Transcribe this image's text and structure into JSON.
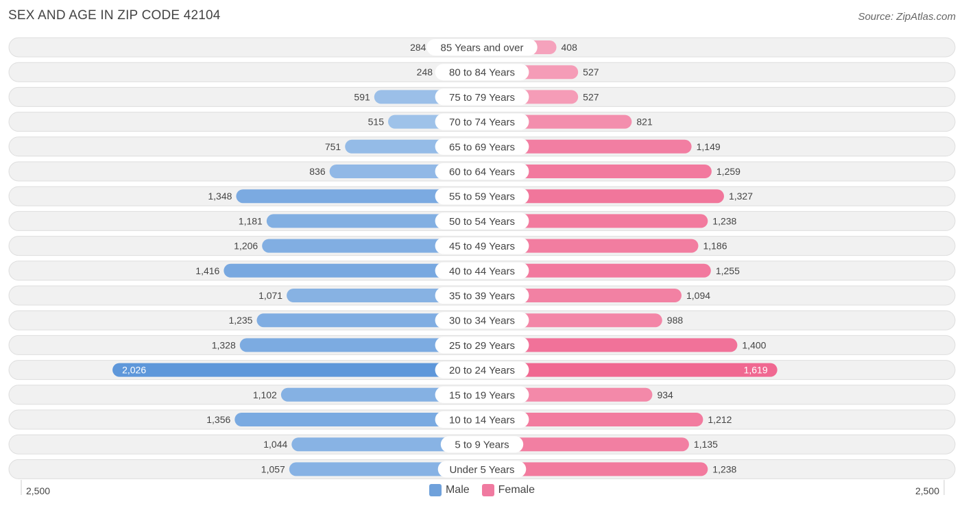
{
  "header": {
    "title": "SEX AND AGE IN ZIP CODE 42104",
    "source": "Source: ZipAtlas.com"
  },
  "chart_data": {
    "type": "bar",
    "orientation": "horizontal-butterfly",
    "title": "SEX AND AGE IN ZIP CODE 42104",
    "categories": [
      "85 Years and over",
      "80 to 84 Years",
      "75 to 79 Years",
      "70 to 74 Years",
      "65 to 69 Years",
      "60 to 64 Years",
      "55 to 59 Years",
      "50 to 54 Years",
      "45 to 49 Years",
      "40 to 44 Years",
      "35 to 39 Years",
      "30 to 34 Years",
      "25 to 29 Years",
      "20 to 24 Years",
      "15 to 19 Years",
      "10 to 14 Years",
      "5 to 9 Years",
      "Under 5 Years"
    ],
    "series": [
      {
        "name": "Male",
        "color": "#6fa1db",
        "values": [
          284,
          248,
          591,
          515,
          751,
          836,
          1348,
          1181,
          1206,
          1416,
          1071,
          1235,
          1328,
          2026,
          1102,
          1356,
          1044,
          1057
        ],
        "labels": [
          "284",
          "248",
          "591",
          "515",
          "751",
          "836",
          "1,348",
          "1,181",
          "1,206",
          "1,416",
          "1,071",
          "1,235",
          "1,328",
          "2,026",
          "1,102",
          "1,356",
          "1,044",
          "1,057"
        ]
      },
      {
        "name": "Female",
        "color": "#f07aa0",
        "values": [
          408,
          527,
          527,
          821,
          1149,
          1259,
          1327,
          1238,
          1186,
          1255,
          1094,
          988,
          1400,
          1619,
          934,
          1212,
          1135,
          1238
        ],
        "labels": [
          "408",
          "527",
          "527",
          "821",
          "1,149",
          "1,259",
          "1,327",
          "1,238",
          "1,186",
          "1,255",
          "1,094",
          "988",
          "1,400",
          "1,619",
          "934",
          "1,212",
          "1,135",
          "1,238"
        ]
      }
    ],
    "xlim": [
      -2500,
      2500
    ],
    "axis_labels": {
      "left": "2,500",
      "right": "2,500"
    },
    "legend_position": "bottom-center"
  },
  "legend": {
    "male": "Male",
    "female": "Female"
  }
}
